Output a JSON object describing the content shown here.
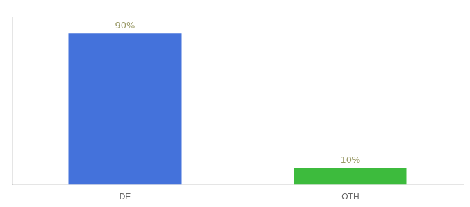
{
  "chart_data": {
    "type": "bar",
    "categories": [
      "DE",
      "OTH"
    ],
    "values": [
      90,
      10
    ],
    "value_labels": [
      "90%",
      "10%"
    ],
    "data_labels": true,
    "colors": [
      "#4472db",
      "#3dbb3d"
    ],
    "ylim": [
      0,
      100
    ],
    "tick_labels": "x",
    "grid": false
  }
}
